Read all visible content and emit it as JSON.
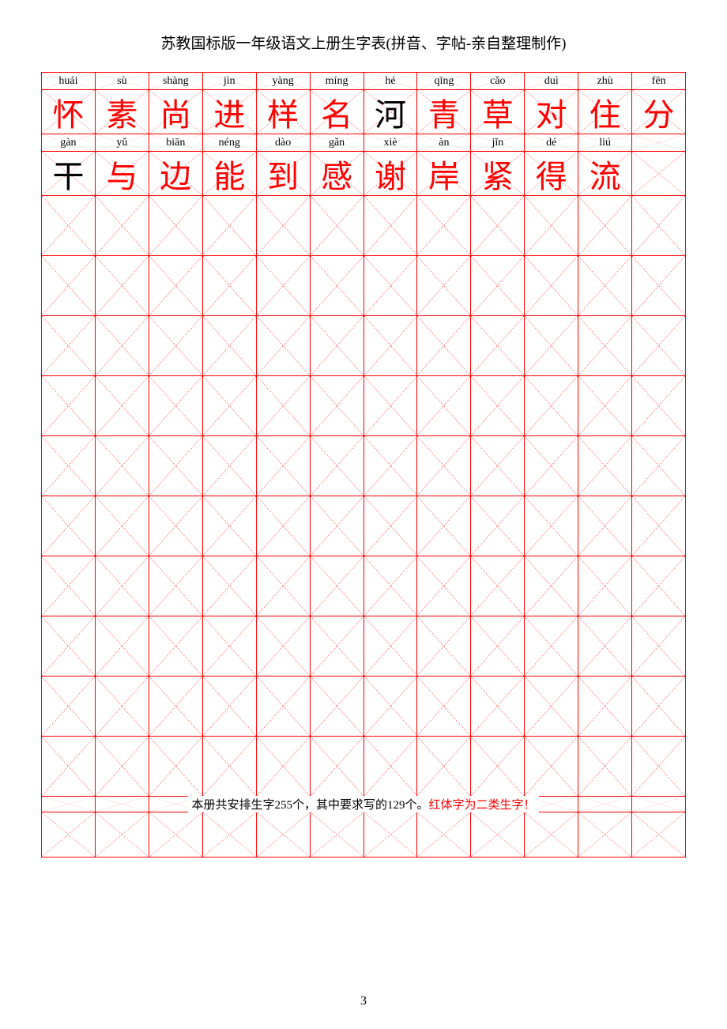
{
  "title": "苏教国标版一年级语文上册生字表(拼音、字帖-亲自整理制作)",
  "page_number": "3",
  "colors": {
    "grid_border": "#ff0000",
    "guide_line": "#ff0000",
    "red_char": "#ff0000",
    "black_char": "#000000",
    "background": "#ffffff"
  },
  "columns": 12,
  "char_rows": [
    {
      "pinyin": [
        "huái",
        "sù",
        "shàng",
        "jìn",
        "yàng",
        "míng",
        "hé",
        "qīng",
        "cǎo",
        "duì",
        "zhù",
        "fēn"
      ],
      "chars": [
        "怀",
        "素",
        "尚",
        "进",
        "样",
        "名",
        "河",
        "青",
        "草",
        "对",
        "住",
        "分"
      ],
      "red": [
        true,
        true,
        true,
        true,
        true,
        true,
        false,
        true,
        true,
        true,
        true,
        true
      ]
    },
    {
      "pinyin": [
        "gàn",
        "yǔ",
        "biān",
        "néng",
        "dào",
        "gǎn",
        "xiè",
        "àn",
        "jǐn",
        "dé",
        "liú",
        ""
      ],
      "chars": [
        "干",
        "与",
        "边",
        "能",
        "到",
        "感",
        "谢",
        "岸",
        "紧",
        "得",
        "流",
        ""
      ],
      "red": [
        false,
        true,
        true,
        true,
        true,
        true,
        true,
        true,
        true,
        true,
        true,
        true
      ]
    }
  ],
  "empty_practice_rows": 10,
  "footer": {
    "black_text": "本册共安排生字255个，其中要求写的129个。",
    "red_text": "红体字为二类生字！"
  },
  "trailing_last_row": true
}
